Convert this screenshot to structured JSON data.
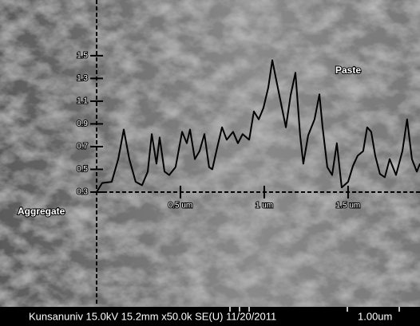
{
  "chart_data": {
    "type": "line",
    "annotations": [
      "Paste",
      "Aggregate"
    ],
    "info_bar": "Kunsanuniv 15.0kV 15.2mm x50.0k SE(U) 11/20/2011",
    "scale_bar": "1.00um",
    "x": [
      0,
      0.033,
      0.09,
      0.129,
      0.162,
      0.195,
      0.233,
      0.271,
      0.305,
      0.329,
      0.357,
      0.376,
      0.405,
      0.433,
      0.471,
      0.51,
      0.538,
      0.557,
      0.586,
      0.614,
      0.643,
      0.671,
      0.69,
      0.719,
      0.748,
      0.776,
      0.814,
      0.843,
      0.871,
      0.91,
      0.938,
      0.967,
      0.995,
      1.024,
      1.048,
      1.071,
      1.1,
      1.129,
      1.157,
      1.186,
      1.214,
      1.233,
      1.262,
      1.3,
      1.329,
      1.348,
      1.376,
      1.405,
      1.433,
      1.462,
      1.5,
      1.529,
      1.557,
      1.59,
      1.614,
      1.638,
      1.662,
      1.69,
      1.719,
      1.748,
      1.786,
      1.824,
      1.852,
      1.881,
      1.91,
      1.929
    ],
    "series": [
      {
        "color": "#000000",
        "values": [
          0.3,
          0.38,
          0.39,
          0.59,
          0.85,
          0.59,
          0.39,
          0.36,
          0.48,
          0.81,
          0.55,
          0.78,
          0.48,
          0.45,
          0.52,
          0.83,
          0.73,
          0.85,
          0.59,
          0.66,
          0.81,
          0.52,
          0.5,
          0.69,
          0.87,
          0.76,
          0.83,
          0.73,
          0.81,
          0.76,
          1.01,
          0.94,
          1.04,
          1.22,
          1.46,
          1.29,
          1.08,
          0.87,
          1.15,
          1.35,
          0.8,
          0.55,
          0.8,
          0.94,
          1.16,
          0.87,
          0.52,
          0.45,
          0.73,
          0.34,
          0.39,
          0.53,
          0.62,
          0.66,
          0.87,
          0.83,
          0.62,
          0.46,
          0.43,
          0.59,
          0.45,
          0.66,
          0.94,
          0.59,
          0.48,
          0.55
        ]
      }
    ],
    "xlim": [
      0,
      1.929
    ],
    "xticks": [
      {
        "value": 0.5,
        "label": "0.5 um"
      },
      {
        "value": 1,
        "label": "1 um"
      },
      {
        "value": 1.5,
        "label": "1.5 um"
      }
    ],
    "ylim": [
      0.3,
      1.99
    ],
    "yticks": [
      0.3,
      0.5,
      0.7,
      0.9,
      1.1,
      1.3,
      1.5
    ]
  }
}
